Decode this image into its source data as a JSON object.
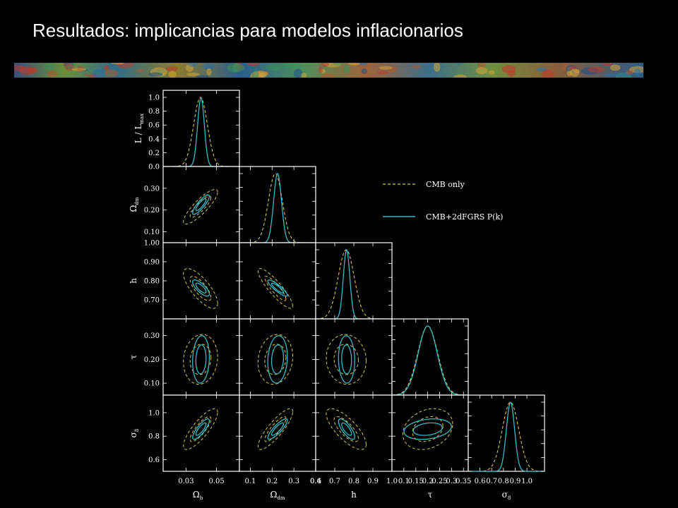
{
  "slide": {
    "title": "Resultados: implicancias para modelos inflacionarios"
  },
  "colors": {
    "background": "#000000",
    "cmb_only": "#d8c64a",
    "cmb_2dfgrs": "#35b9c4",
    "frame": "#ffffff"
  },
  "chart_data": {
    "type": "triangle-corner",
    "parameters": [
      {
        "name": "Ω_b",
        "symbol": "Ω",
        "sub": "b",
        "range": [
          0.015,
          0.065
        ],
        "ticks": [
          0.03,
          0.05
        ],
        "tick_labels": [
          "0.03",
          "0.05"
        ],
        "cmb_only": {
          "mean": 0.0395,
          "sd": 0.0045
        },
        "cmb_2dfgrs": {
          "mean": 0.0398,
          "sd": 0.0022
        }
      },
      {
        "name": "Ω_dm",
        "symbol": "Ω",
        "sub": "dm",
        "range": [
          0.05,
          0.4
        ],
        "ticks": [
          0.1,
          0.2,
          0.3,
          0.4
        ],
        "tick_labels": [
          "0.1",
          "0.2",
          "0.3",
          "0.4"
        ],
        "ytick_labels": [
          "0.10",
          "0.20",
          "0.30"
        ],
        "cmb_only": {
          "mean": 0.215,
          "sd": 0.032
        },
        "cmb_2dfgrs": {
          "mean": 0.225,
          "sd": 0.018
        }
      },
      {
        "name": "h",
        "symbol": "h",
        "sub": "",
        "range": [
          0.6,
          1.0
        ],
        "ticks": [
          0.6,
          0.7,
          0.8,
          0.9,
          1.0
        ],
        "tick_labels": [
          "0.6",
          "0.7",
          "0.8",
          "0.9",
          "1.0"
        ],
        "ytick_labels": [
          "0.70",
          "0.80",
          "0.90",
          "1.00"
        ],
        "cmb_only": {
          "mean": 0.76,
          "sd": 0.042
        },
        "cmb_2dfgrs": {
          "mean": 0.762,
          "sd": 0.017
        }
      },
      {
        "name": "τ",
        "symbol": "τ",
        "sub": "",
        "range": [
          0.05,
          0.37
        ],
        "ticks": [
          0.1,
          0.15,
          0.2,
          0.25,
          0.3,
          0.35
        ],
        "tick_labels": [
          "0.1",
          "0.15",
          "0.2",
          "0.25",
          "0.3",
          "0.35"
        ],
        "ytick_labels": [
          "0.10",
          "0.20",
          "0.30"
        ],
        "cmb_only": {
          "mean": 0.2,
          "sd": 0.042
        },
        "cmb_2dfgrs": {
          "mean": 0.2,
          "sd": 0.04
        }
      },
      {
        "name": "σ_8",
        "symbol": "σ",
        "sub": "8",
        "range": [
          0.5,
          1.15
        ],
        "ticks": [
          0.6,
          0.7,
          0.8,
          0.9,
          1.0
        ],
        "tick_labels": [
          "0.6",
          "0.7",
          "0.8",
          "0.9",
          "1.0"
        ],
        "ytick_labels": [
          "0.6",
          "0.8",
          "1.0"
        ],
        "cmb_only": {
          "mean": 0.86,
          "sd": 0.07
        },
        "cmb_2dfgrs": {
          "mean": 0.86,
          "sd": 0.035
        }
      }
    ],
    "diag_ylabel": "L / L",
    "diag_ylabel_sub": "max",
    "diag_yticks": [
      "0.0",
      "0.2",
      "0.4",
      "0.6",
      "0.8",
      "1.0"
    ],
    "diag_ylim": [
      0,
      1.0
    ],
    "correlations": {
      "1-0": 0.85,
      "2-0": -0.75,
      "2-1": -0.88,
      "3-0": 0.1,
      "3-1": 0.12,
      "3-2": -0.05,
      "4-0": 0.82,
      "4-1": 0.85,
      "4-2": -0.75,
      "4-3": 0.25
    },
    "series": [
      {
        "name": "CMB only",
        "style": "dashed",
        "color": "#d8c64a"
      },
      {
        "name": "CMB+2dFGRS P(k)",
        "style": "solid",
        "color": "#35b9c4"
      }
    ],
    "legend_position": "top-right"
  }
}
